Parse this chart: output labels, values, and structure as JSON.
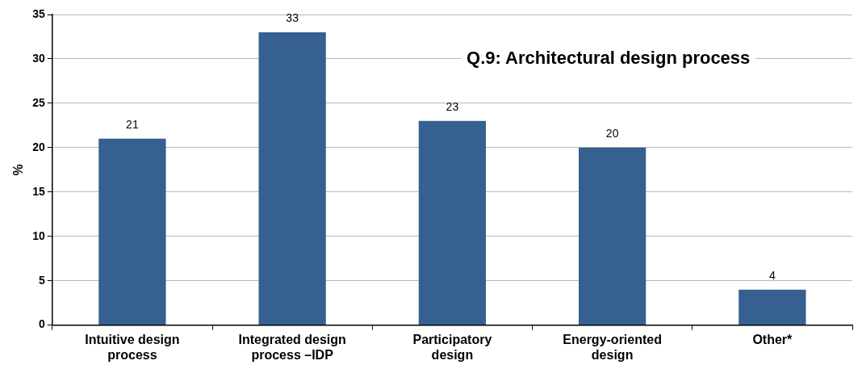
{
  "chart_data": {
    "type": "bar",
    "title": "Q.9: Architectural design process",
    "ylabel": "%",
    "categories": [
      "Intuitive design process",
      "Integrated design process –IDP",
      "Participatory design",
      "Energy-oriented design",
      "Other*"
    ],
    "values": [
      21,
      33,
      23,
      20,
      4
    ],
    "color": "#36608f",
    "ylim": [
      0,
      35
    ],
    "yticks": [
      0,
      5,
      10,
      15,
      20,
      25,
      30,
      35
    ],
    "grid": "y",
    "data_labels": true,
    "legend": false
  }
}
